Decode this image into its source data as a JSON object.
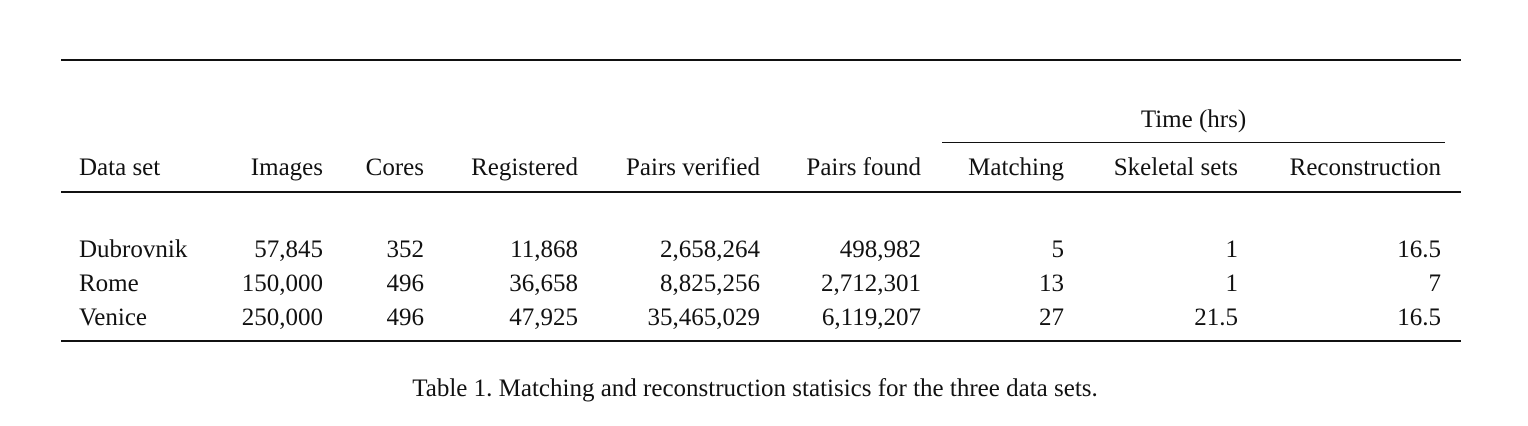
{
  "table": {
    "group_header": "Time (hrs)",
    "columns": [
      "Data set",
      "Images",
      "Cores",
      "Registered",
      "Pairs verified",
      "Pairs found",
      "Matching",
      "Skeletal sets",
      "Reconstruction"
    ],
    "rows": [
      [
        "Dubrovnik",
        "57,845",
        "352",
        "11,868",
        "2,658,264",
        "498,982",
        "5",
        "1",
        "16.5"
      ],
      [
        "Rome",
        "150,000",
        "496",
        "36,658",
        "8,825,256",
        "2,712,301",
        "13",
        "1",
        "7"
      ],
      [
        "Venice",
        "250,000",
        "496",
        "47,925",
        "35,465,029",
        "6,119,207",
        "27",
        "21.5",
        "16.5"
      ]
    ]
  },
  "caption": "Table 1. Matching and reconstruction statisics for the three data sets."
}
